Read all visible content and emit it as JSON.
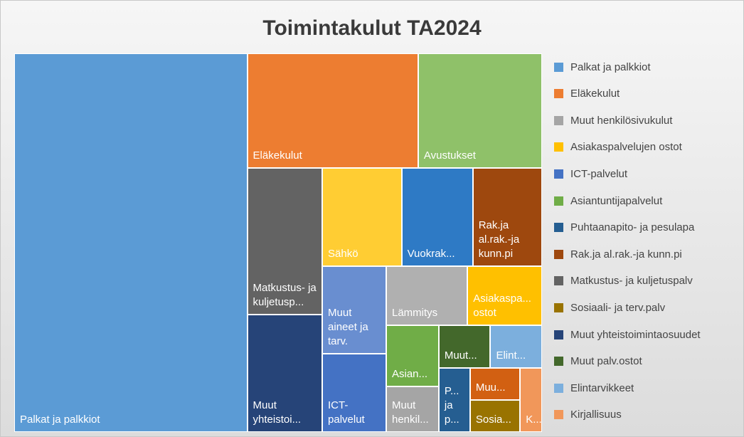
{
  "chart_data": {
    "type": "treemap",
    "title": "Toimintakulut TA2024",
    "tiles": [
      {
        "label": "Palkat ja palkkiot",
        "value": 44.1,
        "color": "#5b9bd5"
      },
      {
        "label": "Eläkekulut",
        "value": 9.8,
        "color": "#ed7d31"
      },
      {
        "label": "Avustukset",
        "value": 7.1,
        "color": "#8fc169"
      },
      {
        "label": "Matkustus- ja kuljetusp...",
        "value": 5.5,
        "color": "#636363"
      },
      {
        "label": "Muut yhteistoi...",
        "value": 4.4,
        "color": "#264478"
      },
      {
        "label": "Sähkö",
        "value": 3.9,
        "color": "#ffcd33"
      },
      {
        "label": "Vuokrak...",
        "value": 3.5,
        "color": "#2e7ac5"
      },
      {
        "label": "Rak.ja al.rak.-ja kunn.pi",
        "value": 3.4,
        "color": "#9e480e"
      },
      {
        "label": "Muut aineet ja tarv.",
        "value": 2.8,
        "color": "#698ed0"
      },
      {
        "label": "ICT-palvelut",
        "value": 2.5,
        "color": "#4472c4"
      },
      {
        "label": "Lämmitys",
        "value": 2.4,
        "color": "#b0b0b0"
      },
      {
        "label": "Asiakaspa... ostot",
        "value": 2.2,
        "color": "#ffc000"
      },
      {
        "label": "Asian...",
        "value": 1.6,
        "color": "#70ad47"
      },
      {
        "label": "Muut henkil...",
        "value": 1.2,
        "color": "#a5a5a5"
      },
      {
        "label": "Muut...",
        "value": 1.1,
        "color": "#43682b"
      },
      {
        "label": "Elint...",
        "value": 1.1,
        "color": "#7cafdd"
      },
      {
        "label": "P... ja p...",
        "value": 1.0,
        "color": "#255e91"
      },
      {
        "label": "Muu...",
        "value": 0.8,
        "color": "#d26012"
      },
      {
        "label": "Sosia...",
        "value": 0.8,
        "color": "#997300"
      },
      {
        "label": "K...",
        "value": 0.7,
        "color": "#f1975a"
      }
    ],
    "legend": [
      {
        "name": "Palkat ja palkkiot",
        "color": "#5b9bd5"
      },
      {
        "name": "Eläkekulut",
        "color": "#ed7d31"
      },
      {
        "name": "Muut henkilösivukulut",
        "color": "#a5a5a5"
      },
      {
        "name": "Asiakaspalvelujen ostot",
        "color": "#ffc000"
      },
      {
        "name": "ICT-palvelut",
        "color": "#4472c4"
      },
      {
        "name": "Asiantuntijapalvelut",
        "color": "#70ad47"
      },
      {
        "name": "Puhtaanapito- ja pesulapa",
        "color": "#255e91"
      },
      {
        "name": "Rak.ja al.rak.-ja kunn.pi",
        "color": "#9e480e"
      },
      {
        "name": "Matkustus- ja kuljetuspalv",
        "color": "#636363"
      },
      {
        "name": "Sosiaali- ja terv.palv",
        "color": "#997300"
      },
      {
        "name": "Muut yhteistoimintaosuudet",
        "color": "#264478"
      },
      {
        "name": "Muut palv.ostot",
        "color": "#43682b"
      },
      {
        "name": "Elintarvikkeet",
        "color": "#7cafdd"
      },
      {
        "name": "Kirjallisuus",
        "color": "#f1975a"
      }
    ]
  }
}
